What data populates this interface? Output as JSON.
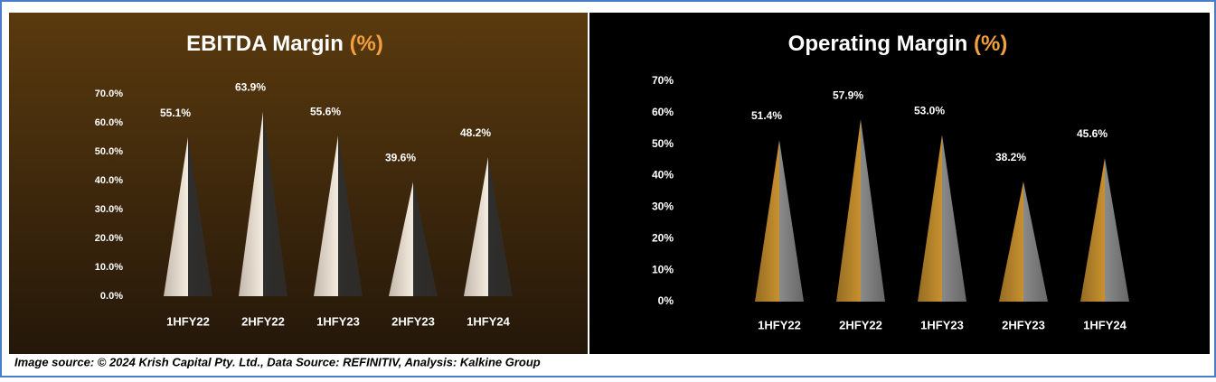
{
  "chart_data": [
    {
      "type": "cone-bar",
      "title": "EBITDA Margin",
      "title_unit": "(%)",
      "categories": [
        "1HFY22",
        "2HFY22",
        "1HFY23",
        "2HFY23",
        "1HFY24"
      ],
      "values": [
        55.1,
        63.9,
        55.6,
        39.6,
        48.2
      ],
      "value_labels": [
        "55.1%",
        "63.9%",
        "55.6%",
        "39.6%",
        "48.2%"
      ],
      "ylim": [
        0,
        70
      ],
      "yticks": [
        {
          "value": 0,
          "label": "0.0%"
        },
        {
          "value": 10,
          "label": "10.0%"
        },
        {
          "value": 20,
          "label": "20.0%"
        },
        {
          "value": 30,
          "label": "30.0%"
        },
        {
          "value": 40,
          "label": "40.0%"
        },
        {
          "value": 50,
          "label": "50.0%"
        },
        {
          "value": 60,
          "label": "60.0%"
        },
        {
          "value": 70,
          "label": "70.0%"
        }
      ],
      "colors": [
        "#f4ece0",
        "#2e2e2e"
      ],
      "background": [
        "#5a3a0e",
        "#24170a"
      ],
      "grid": false
    },
    {
      "type": "cone-bar",
      "title": "Operating Margin",
      "title_unit": "(%)",
      "categories": [
        "1HFY22",
        "2HFY22",
        "1HFY23",
        "2HFY23",
        "1HFY24"
      ],
      "values": [
        51.4,
        57.9,
        53.0,
        38.2,
        45.6
      ],
      "value_labels": [
        "51.4%",
        "57.9%",
        "53.0%",
        "38.2%",
        "45.6%"
      ],
      "ylim": [
        0,
        70
      ],
      "yticks": [
        {
          "value": 0,
          "label": "0%"
        },
        {
          "value": 10,
          "label": "10%"
        },
        {
          "value": 20,
          "label": "20%"
        },
        {
          "value": 30,
          "label": "30%"
        },
        {
          "value": 40,
          "label": "40%"
        },
        {
          "value": 50,
          "label": "50%"
        },
        {
          "value": 60,
          "label": "60%"
        },
        {
          "value": 70,
          "label": "70%"
        }
      ],
      "colors": [
        "#c8912f",
        "#8a8a8a"
      ],
      "background": [
        "#000000",
        "#000000"
      ],
      "grid": false
    }
  ],
  "caption": "Image source: © 2024 Krish Capital Pty. Ltd., Data Source: REFINITIV, Analysis: Kalkine Group"
}
